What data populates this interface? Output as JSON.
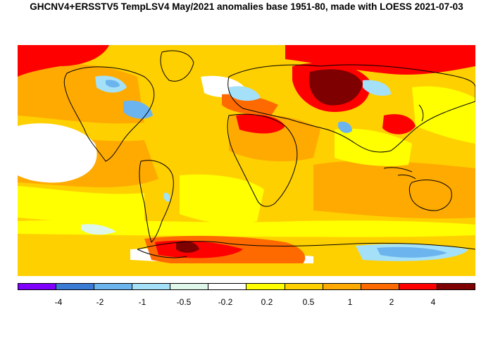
{
  "title": "GHCNV4+ERSSTV5 TempLSV4 May/2021 anomalies base 1951-80, made with LOESS 2021-07-03",
  "legend": {
    "colors": [
      "#7f00ff",
      "#3a7bd5",
      "#6cb4ee",
      "#a4e0f7",
      "#dff7ea",
      "#ffffff",
      "#ffff00",
      "#ffd000",
      "#ffaa00",
      "#ff6a00",
      "#ff0000",
      "#7f0000"
    ],
    "tick_labels": [
      "-4",
      "-2",
      "-1",
      "-0.5",
      "-0.2",
      "0.2",
      "0.5",
      "1",
      "2",
      "4"
    ]
  },
  "map": {
    "base_color": "#ffd000"
  }
}
